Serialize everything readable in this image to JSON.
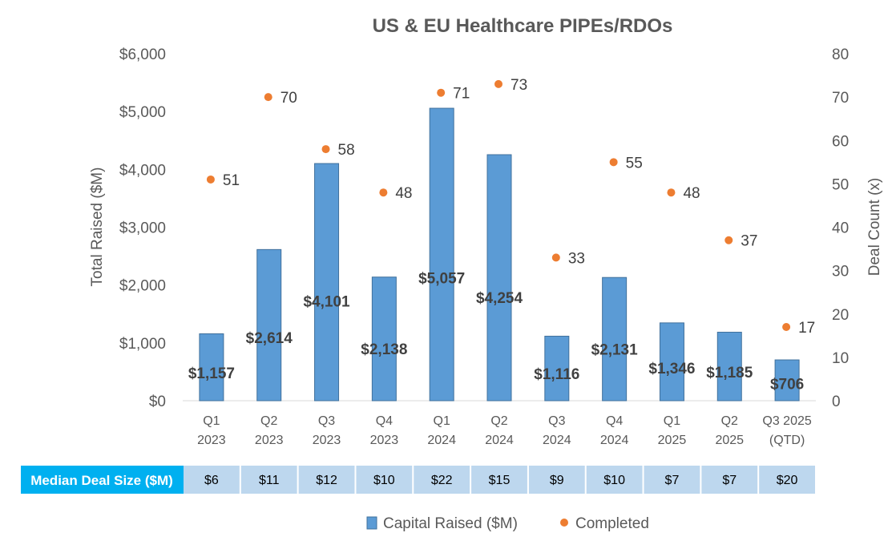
{
  "chart_data": {
    "type": "bar",
    "title": "US & EU Healthcare PIPEs/RDOs",
    "categories": [
      [
        "Q1",
        "2023"
      ],
      [
        "Q2",
        "2023"
      ],
      [
        "Q3",
        "2023"
      ],
      [
        "Q4",
        "2023"
      ],
      [
        "Q1",
        "2024"
      ],
      [
        "Q2",
        "2024"
      ],
      [
        "Q3",
        "2024"
      ],
      [
        "Q4",
        "2024"
      ],
      [
        "Q1",
        "2025"
      ],
      [
        "Q2",
        "2025"
      ],
      [
        "Q3 2025",
        "(QTD)"
      ]
    ],
    "series": [
      {
        "name": "Capital Raised ($M)",
        "type": "bar",
        "axis": "left",
        "color": "#5B9BD5",
        "values": [
          1157,
          2614,
          4101,
          2138,
          5057,
          4254,
          1116,
          2131,
          1346,
          1185,
          706
        ],
        "labels": [
          "$1,157",
          "$2,614",
          "$4,101",
          "$2,138",
          "$5,057",
          "$4,254",
          "$1,116",
          "$2,131",
          "$1,346",
          "$1,185",
          "$706"
        ]
      },
      {
        "name": "Completed",
        "type": "scatter",
        "axis": "right",
        "color": "#ED7D31",
        "values": [
          51,
          70,
          58,
          48,
          71,
          73,
          33,
          55,
          48,
          37,
          17
        ],
        "labels": [
          "51",
          "70",
          "58",
          "48",
          "71",
          "73",
          "33",
          "55",
          "48",
          "37",
          "17"
        ]
      }
    ],
    "ylabel": "Total Raised ($M)",
    "ylim": [
      0,
      6000
    ],
    "yticks": [
      0,
      1000,
      2000,
      3000,
      4000,
      5000,
      6000
    ],
    "ytick_labels": [
      "$0",
      "$1,000",
      "$2,000",
      "$3,000",
      "$4,000",
      "$5,000",
      "$6,000"
    ],
    "y2label": "Deal Count (x)",
    "y2lim": [
      0,
      80
    ],
    "y2ticks": [
      0,
      10,
      20,
      30,
      40,
      50,
      60,
      70,
      80
    ],
    "y2tick_labels": [
      "0",
      "10",
      "20",
      "30",
      "40",
      "50",
      "60",
      "70",
      "80"
    ],
    "grid": false,
    "legend_position": "bottom",
    "table": {
      "header": "Median Deal Size ($M)",
      "header_color": "#00B0F0",
      "cell_color": "#BDD7EE",
      "values": [
        "$6",
        "$11",
        "$12",
        "$10",
        "$22",
        "$15",
        "$9",
        "$10",
        "$7",
        "$7",
        "$20"
      ]
    }
  }
}
